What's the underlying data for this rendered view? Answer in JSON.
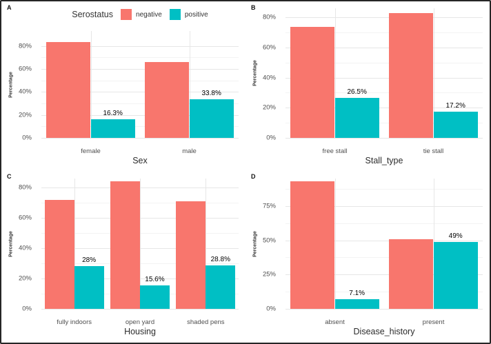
{
  "legend": {
    "title": "Serostatus",
    "items": [
      {
        "label": "negative",
        "color": "#F8766D"
      },
      {
        "label": "positive",
        "color": "#00BFC4"
      }
    ],
    "position": "top-of-panel-A"
  },
  "styles": {
    "grid_major": "#e6e6e6",
    "grid_minor": "#f3f3f3",
    "background": "#ffffff",
    "border": "#262626",
    "tick_text": "#4f4f4f",
    "title_text": "#2b2b2b"
  },
  "chart_data": [
    {
      "panel": "A",
      "type": "bar",
      "title": "",
      "xlabel": "Sex",
      "ylabel": "Percentage",
      "categories": [
        "female",
        "male"
      ],
      "series": [
        {
          "name": "negative",
          "color": "#F8766D",
          "values": [
            83.7,
            66.2
          ]
        },
        {
          "name": "positive",
          "color": "#00BFC4",
          "values": [
            16.3,
            33.8
          ]
        }
      ],
      "bar_labels": {
        "series": "positive",
        "texts": [
          "16.3%",
          "33.8%"
        ]
      },
      "yticks": [
        0,
        20,
        40,
        60,
        80
      ],
      "ytick_labels": [
        "0%",
        "20%",
        "40%",
        "60%",
        "80%"
      ],
      "ylim": [
        0,
        93
      ],
      "grid": true,
      "legend": true
    },
    {
      "panel": "B",
      "type": "bar",
      "title": "",
      "xlabel": "Stall_type",
      "ylabel": "Percentage",
      "categories": [
        "free stall",
        "tie stall"
      ],
      "series": [
        {
          "name": "negative",
          "color": "#F8766D",
          "values": [
            73.5,
            82.8
          ]
        },
        {
          "name": "positive",
          "color": "#00BFC4",
          "values": [
            26.5,
            17.2
          ]
        }
      ],
      "bar_labels": {
        "series": "positive",
        "texts": [
          "26.5%",
          "17.2%"
        ]
      },
      "yticks": [
        0,
        20,
        40,
        60,
        80
      ],
      "ytick_labels": [
        "0%",
        "20%",
        "40%",
        "60%",
        "80%"
      ],
      "ylim": [
        0,
        86
      ],
      "grid": true,
      "legend": false
    },
    {
      "panel": "C",
      "type": "bar",
      "title": "",
      "xlabel": "Housing",
      "ylabel": "Percentage",
      "categories": [
        "fully indoors",
        "open yard",
        "shaded pens"
      ],
      "series": [
        {
          "name": "negative",
          "color": "#F8766D",
          "values": [
            72.0,
            84.4,
            71.2
          ]
        },
        {
          "name": "positive",
          "color": "#00BFC4",
          "values": [
            28.0,
            15.6,
            28.8
          ]
        }
      ],
      "bar_labels": {
        "series": "positive",
        "texts": [
          "28%",
          "15.6%",
          "28.8%"
        ]
      },
      "yticks": [
        0,
        20,
        40,
        60,
        80
      ],
      "ytick_labels": [
        "0%",
        "20%",
        "40%",
        "60%",
        "80%"
      ],
      "ylim": [
        0,
        86
      ],
      "grid": true,
      "legend": false
    },
    {
      "panel": "D",
      "type": "bar",
      "title": "",
      "xlabel": "Disease_history",
      "ylabel": "Percentage",
      "categories": [
        "absent",
        "present"
      ],
      "series": [
        {
          "name": "negative",
          "color": "#F8766D",
          "values": [
            92.9,
            51.0
          ]
        },
        {
          "name": "positive",
          "color": "#00BFC4",
          "values": [
            7.1,
            49.0
          ]
        }
      ],
      "bar_labels": {
        "series": "positive",
        "texts": [
          "7.1%",
          "49%"
        ]
      },
      "yticks": [
        0,
        25,
        50,
        75
      ],
      "ytick_labels": [
        "0%",
        "25%",
        "50%",
        "75%"
      ],
      "ylim": [
        0,
        95
      ],
      "grid": true,
      "legend": false
    }
  ]
}
